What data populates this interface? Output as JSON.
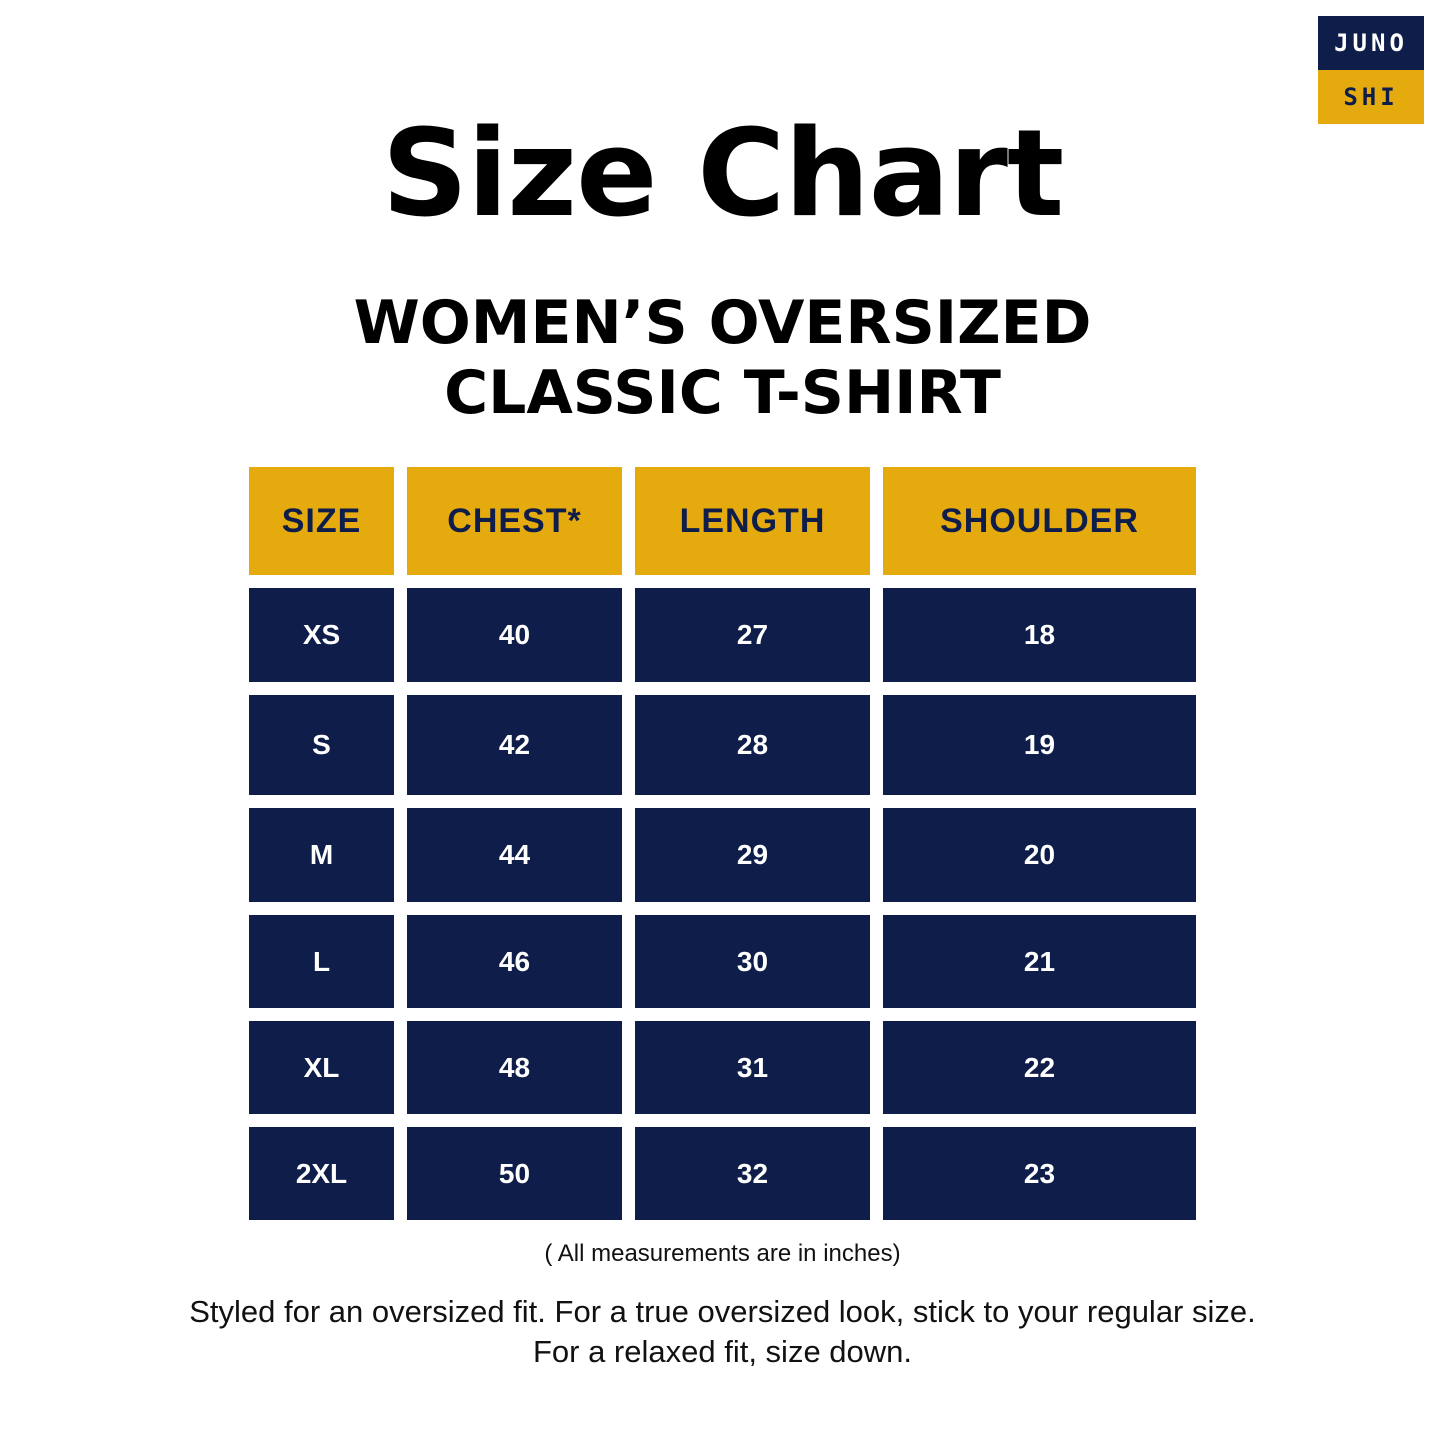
{
  "brand": {
    "line1": "JUNO",
    "line2": "SHI",
    "colors": {
      "navy": "#0f1d4a",
      "gold": "#e5ab0e"
    }
  },
  "title": "Size Chart",
  "subtitle": {
    "line1": "WOMEN’S OVERSIZED",
    "line2": "CLASSIC T-SHIRT"
  },
  "table": {
    "headers": [
      "SIZE",
      "CHEST*",
      "LENGTH",
      "SHOULDER"
    ],
    "rows": [
      [
        "XS",
        "40",
        "27",
        "18"
      ],
      [
        "S",
        "42",
        "28",
        "19"
      ],
      [
        "M",
        "44",
        "29",
        "20"
      ],
      [
        "L",
        "46",
        "30",
        "21"
      ],
      [
        "XL",
        "48",
        "31",
        "22"
      ],
      [
        "2XL",
        "50",
        "32",
        "23"
      ]
    ]
  },
  "note": "( All measurements are in inches)",
  "footer": {
    "line1": "Styled for an oversized fit. For a true oversized look, stick to your regular size.",
    "line2": "For a relaxed fit, size down."
  }
}
